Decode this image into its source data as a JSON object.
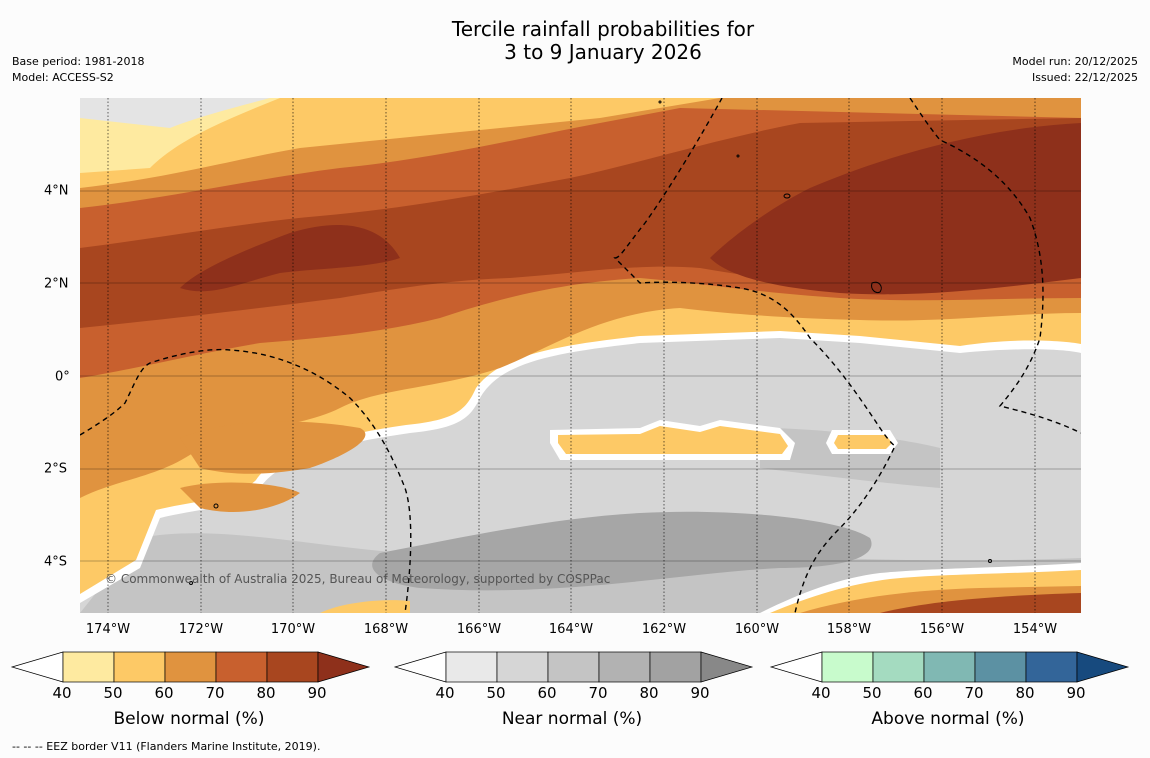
{
  "title": {
    "line1": "Tercile rainfall probabilities for",
    "line2": "3 to 9 January 2026"
  },
  "info": {
    "base_period": "Base period: 1981-2018",
    "model": "Model: ACCESS-S2",
    "model_run": "Model run: 20/12/2025",
    "issued": "Issued: 22/12/2025"
  },
  "map": {
    "lat_labels": [
      "4°N",
      "2°N",
      "0°",
      "2°S",
      "4°S"
    ],
    "lon_labels": [
      "174°W",
      "172°W",
      "170°W",
      "168°W",
      "166°W",
      "164°W",
      "162°W",
      "160°W",
      "158°W",
      "156°W",
      "154°W"
    ],
    "copyright": "© Commonwealth of Australia 2025, Bureau of Meteorology, supported by COSPPac"
  },
  "legend": {
    "ticks": [
      "40",
      "50",
      "60",
      "70",
      "80",
      "90"
    ],
    "bars": [
      {
        "label": "Below normal (%)",
        "colors": [
          "#ffffff",
          "#feeaa0",
          "#fdc966",
          "#e0933f",
          "#c8602e",
          "#a8461f",
          "#8e301b"
        ]
      },
      {
        "label": "Near normal (%)",
        "colors": [
          "#ffffff",
          "#e9e9e9",
          "#d6d6d6",
          "#c4c4c4",
          "#b2b2b2",
          "#a2a2a2",
          "#888888"
        ]
      },
      {
        "label": "Above normal (%)",
        "colors": [
          "#ffffff",
          "#c8fbcc",
          "#a4dbc0",
          "#80b8b3",
          "#5c91a3",
          "#336599",
          "#174a7e"
        ]
      }
    ]
  },
  "footnote": "--  --  -- EEZ border V11 (Flanders Marine Institute, 2019)."
}
